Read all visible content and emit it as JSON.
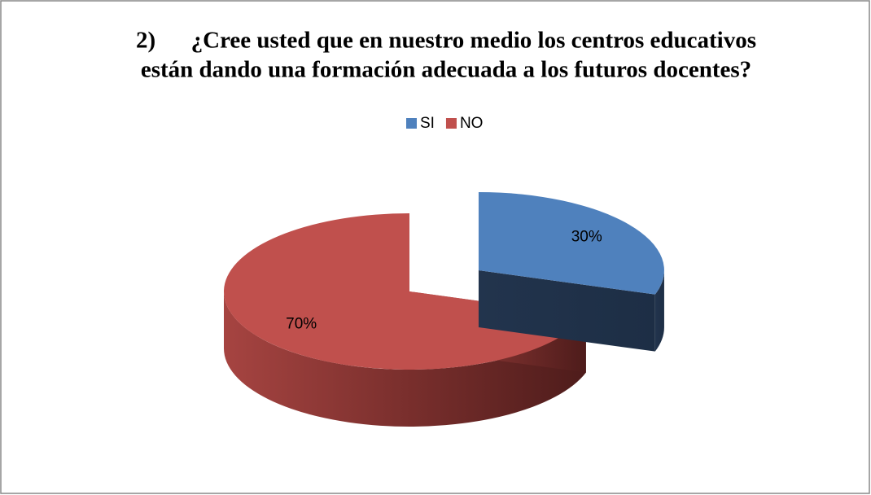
{
  "chart_data": {
    "type": "pie",
    "title": [
      "2)      ¿Cree usted que en nuestro medio los centros educativos",
      "están dando una formación adecuada a los futuros docentes?"
    ],
    "categories": [
      "SI",
      "NO"
    ],
    "values": [
      30,
      70
    ],
    "value_labels": [
      "30%",
      "70%"
    ],
    "colors": [
      "#4f81bd",
      "#c0504d"
    ],
    "legend": "top"
  }
}
